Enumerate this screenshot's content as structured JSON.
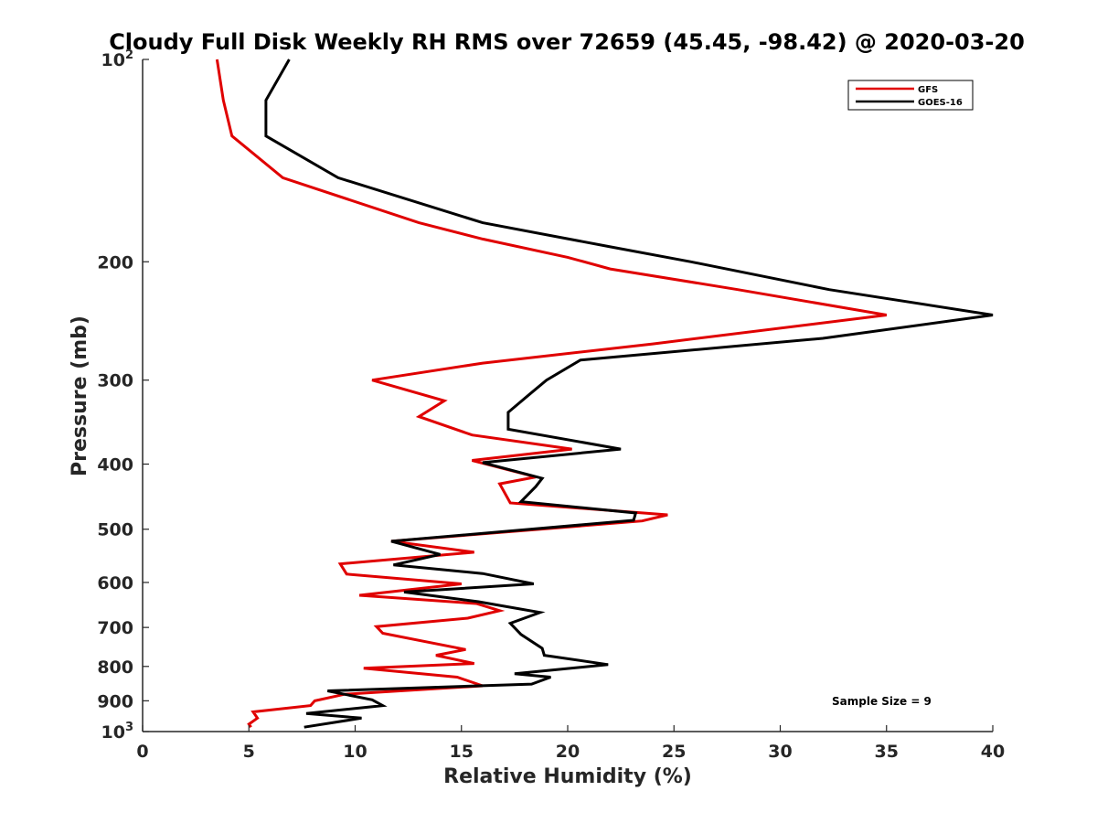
{
  "chart_data": {
    "type": "line",
    "title": "Cloudy Full Disk Weekly RH RMS over 72659 (45.45, -98.42) @ 2020-03-20",
    "xlabel": "Relative Humidity (%)",
    "ylabel": "Pressure (mb)",
    "xlim": [
      0,
      40
    ],
    "ylim": [
      100,
      1000
    ],
    "y_scale": "log",
    "y_reversed": true,
    "x_ticks": [
      "0",
      "5",
      "10",
      "15",
      "20",
      "25",
      "30",
      "35",
      "40"
    ],
    "y_ticks": [
      {
        "value": 100,
        "base": "10",
        "sup": "2"
      },
      {
        "value": 200,
        "base": "200",
        "sup": ""
      },
      {
        "value": 300,
        "base": "300",
        "sup": ""
      },
      {
        "value": 400,
        "base": "400",
        "sup": ""
      },
      {
        "value": 500,
        "base": "500",
        "sup": ""
      },
      {
        "value": 600,
        "base": "600",
        "sup": ""
      },
      {
        "value": 700,
        "base": "700",
        "sup": ""
      },
      {
        "value": 800,
        "base": "800",
        "sup": ""
      },
      {
        "value": 900,
        "base": "900",
        "sup": ""
      },
      {
        "value": 1000,
        "base": "10",
        "sup": "3"
      }
    ],
    "grid": false,
    "legend_position": "top-right",
    "annotation": "Sample Size = 9",
    "series": [
      {
        "name": "GFS",
        "color": "#e00000",
        "points": [
          [
            3.5,
            100
          ],
          [
            3.8,
            115
          ],
          [
            4.2,
            130
          ],
          [
            6.6,
            150
          ],
          [
            13,
            175
          ],
          [
            16,
            185
          ],
          [
            20,
            197
          ],
          [
            22,
            205
          ],
          [
            28,
            220
          ],
          [
            35,
            240
          ],
          [
            24,
            265
          ],
          [
            16,
            283
          ],
          [
            10.8,
            300
          ],
          [
            14.2,
            322
          ],
          [
            13,
            340
          ],
          [
            15.5,
            362
          ],
          [
            20.2,
            380
          ],
          [
            15.5,
            395
          ],
          [
            18.5,
            418
          ],
          [
            16.8,
            428
          ],
          [
            17.3,
            457
          ],
          [
            24.7,
            476
          ],
          [
            23.5,
            486
          ],
          [
            11.7,
            521
          ],
          [
            15.6,
            541
          ],
          [
            9.3,
            563
          ],
          [
            9.6,
            583
          ],
          [
            15,
            603
          ],
          [
            10.2,
            627
          ],
          [
            15.7,
            645
          ],
          [
            16.8,
            661
          ],
          [
            15.3,
            678
          ],
          [
            11,
            698
          ],
          [
            11.3,
            714
          ],
          [
            15.2,
            755
          ],
          [
            13.8,
            770
          ],
          [
            15.6,
            792
          ],
          [
            10.4,
            805
          ],
          [
            14.8,
            830
          ],
          [
            16,
            855
          ],
          [
            9.5,
            880
          ],
          [
            8.1,
            900
          ],
          [
            7.9,
            915
          ],
          [
            5.2,
            935
          ],
          [
            5.4,
            955
          ],
          [
            5,
            975
          ],
          [
            5.1,
            985
          ]
        ]
      },
      {
        "name": "GOES-16",
        "color": "#000000",
        "points": [
          [
            6.9,
            100
          ],
          [
            5.8,
            115
          ],
          [
            5.8,
            130
          ],
          [
            9.2,
            150
          ],
          [
            16,
            175
          ],
          [
            22,
            190
          ],
          [
            25.8,
            200
          ],
          [
            32.3,
            220
          ],
          [
            40,
            240
          ],
          [
            32,
            260
          ],
          [
            20.6,
            280
          ],
          [
            19,
            300
          ],
          [
            18.2,
            315
          ],
          [
            17.2,
            335
          ],
          [
            17.2,
            355
          ],
          [
            22.5,
            380
          ],
          [
            16,
            398
          ],
          [
            18.8,
            420
          ],
          [
            18.5,
            432
          ],
          [
            17.8,
            455
          ],
          [
            23.2,
            473
          ],
          [
            23.1,
            485
          ],
          [
            11.7,
            521
          ],
          [
            14,
            545
          ],
          [
            11.8,
            565
          ],
          [
            16,
            582
          ],
          [
            18.4,
            603
          ],
          [
            12.3,
            620
          ],
          [
            15.8,
            641
          ],
          [
            18.7,
            665
          ],
          [
            17.3,
            690
          ],
          [
            17.8,
            717
          ],
          [
            18.8,
            752
          ],
          [
            18.9,
            770
          ],
          [
            21.9,
            795
          ],
          [
            17.5,
            820
          ],
          [
            19.2,
            830
          ],
          [
            18.3,
            850
          ],
          [
            8.7,
            870
          ],
          [
            10.8,
            897
          ],
          [
            11.3,
            915
          ],
          [
            7.7,
            940
          ],
          [
            10.3,
            955
          ],
          [
            7.6,
            985
          ]
        ]
      }
    ]
  }
}
